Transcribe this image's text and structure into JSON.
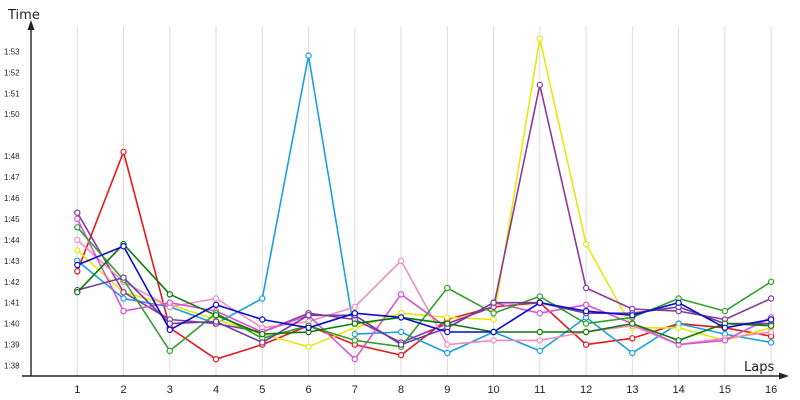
{
  "chart_data": {
    "type": "line",
    "xlabel": "Laps",
    "ylabel": "Time",
    "x": [
      1,
      2,
      3,
      4,
      5,
      6,
      7,
      8,
      9,
      10,
      11,
      12,
      13,
      14,
      15,
      16
    ],
    "y_tick_labels": [
      "1:38",
      "1:39",
      "1:40",
      "1:41",
      "1:42",
      "1:43",
      "1:44",
      "1:45",
      "1:46",
      "1:47",
      "1:48",
      "1:50",
      "1:51",
      "1:52",
      "1:53"
    ],
    "y_tick_values": [
      98,
      99,
      100,
      101,
      102,
      103,
      104,
      105,
      106,
      107,
      108,
      110,
      111,
      112,
      113
    ],
    "ylim": [
      97.5,
      114.5
    ],
    "xlim": [
      0,
      16.3
    ],
    "grid": "vertical",
    "series": [
      {
        "color": "#e41a1c",
        "values": [
          102.5,
          108.2,
          99.8,
          98.3,
          99.0,
          99.9,
          99.0,
          98.5,
          100.2,
          100.8,
          101.0,
          99.0,
          99.3,
          100.0,
          99.8,
          99.4
        ]
      },
      {
        "color": "#1a9fe0",
        "values": [
          103.0,
          101.2,
          100.8,
          100.0,
          101.2,
          112.8,
          99.5,
          99.6,
          98.6,
          99.6,
          98.7,
          100.3,
          98.6,
          100.0,
          99.5,
          99.1
        ]
      },
      {
        "color": "#e6e612",
        "values": [
          103.5,
          101.5,
          100.9,
          100.2,
          99.5,
          98.9,
          99.8,
          100.5,
          100.3,
          100.2,
          113.6,
          103.8,
          99.8,
          99.8,
          99.2,
          99.8
        ]
      },
      {
        "color": "#8b3a9b",
        "values": [
          105.3,
          101.5,
          100.2,
          100.0,
          99.6,
          100.5,
          100.2,
          99.1,
          100.0,
          100.8,
          111.4,
          101.7,
          100.7,
          100.6,
          100.2,
          101.2
        ]
      },
      {
        "color": "#f08cc0",
        "values": [
          104.0,
          102.0,
          100.8,
          101.2,
          99.8,
          100.1,
          100.8,
          103.0,
          99.0,
          99.2,
          99.2,
          99.6,
          99.9,
          99.0,
          99.3,
          99.6
        ]
      },
      {
        "color": "#d455d4",
        "values": [
          105.0,
          100.6,
          101.0,
          100.6,
          99.6,
          100.4,
          98.3,
          101.4,
          99.8,
          101.0,
          100.5,
          100.9,
          100.0,
          99.0,
          99.2,
          100.3
        ]
      },
      {
        "color": "#33a02c",
        "values": [
          104.6,
          102.1,
          98.7,
          100.5,
          99.3,
          99.9,
          99.2,
          98.9,
          101.7,
          100.5,
          101.3,
          100.0,
          100.3,
          101.2,
          100.6,
          102.0
        ]
      },
      {
        "color": "#6b3fa0",
        "values": [
          101.6,
          102.2,
          100.0,
          100.1,
          99.1,
          100.4,
          100.4,
          99.0,
          99.8,
          101.0,
          101.0,
          100.5,
          100.5,
          100.8,
          100.0,
          100.0
        ]
      },
      {
        "color": "#0a7a0a",
        "values": [
          101.5,
          103.8,
          101.4,
          100.4,
          99.5,
          99.6,
          100.0,
          100.3,
          100.0,
          99.6,
          99.6,
          99.6,
          100.0,
          99.2,
          100.0,
          99.9
        ]
      },
      {
        "color": "#0b0bcc",
        "values": [
          102.8,
          103.7,
          99.7,
          100.9,
          100.2,
          99.8,
          100.5,
          100.3,
          99.6,
          99.6,
          101.0,
          100.6,
          100.4,
          101.0,
          99.8,
          100.2
        ]
      }
    ]
  }
}
